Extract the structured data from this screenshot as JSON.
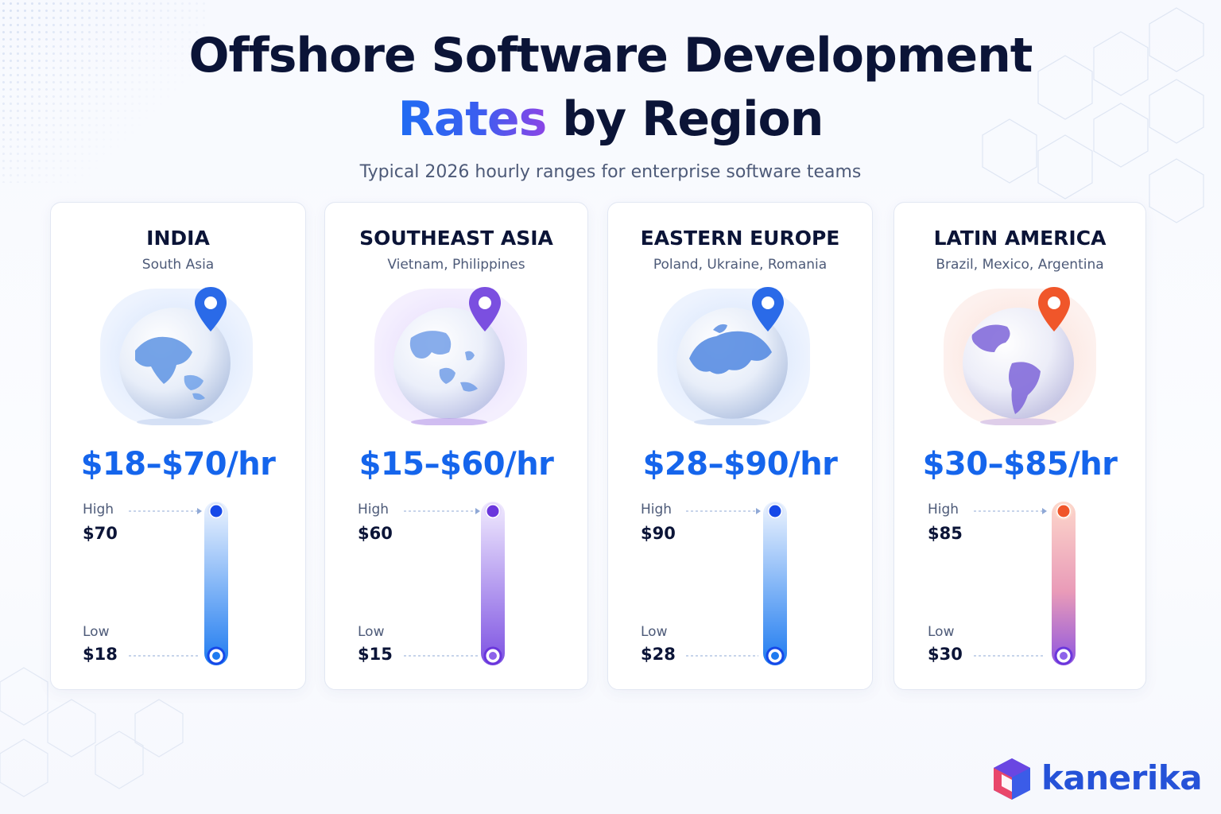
{
  "header": {
    "title_line1": "Offshore Software Development",
    "title_accent": "Rates",
    "title_rest": "by Region",
    "subtitle": "Typical 2026 hourly ranges for enterprise software teams"
  },
  "labels": {
    "high": "High",
    "low": "Low"
  },
  "chart_data": {
    "type": "range",
    "unit": "USD per hour",
    "categories": [
      "INDIA",
      "SOUTHEAST ASIA",
      "EASTERN EUROPE",
      "LATIN AMERICA"
    ],
    "regions": [
      {
        "name": "INDIA",
        "countries": "South Asia",
        "range_label": "$18–$70/hr",
        "low": 18,
        "high": 70,
        "low_label": "$18",
        "high_label": "$70",
        "accent": "#1565ec",
        "pin_color": "#2a6ae8",
        "globe_icon": "globe-asia-icon"
      },
      {
        "name": "SOUTHEAST ASIA",
        "countries": "Vietnam, Philippines",
        "range_label": "$15–$60/hr",
        "low": 15,
        "high": 60,
        "low_label": "$15",
        "high_label": "$60",
        "accent": "#7b4fe0",
        "pin_color": "#7b4fe0",
        "globe_icon": "globe-southeast-asia-icon"
      },
      {
        "name": "EASTERN EUROPE",
        "countries": "Poland, Ukraine, Romania",
        "range_label": "$28–$90/hr",
        "low": 28,
        "high": 90,
        "low_label": "$28",
        "high_label": "$90",
        "accent": "#1565ec",
        "pin_color": "#2a6ae8",
        "globe_icon": "globe-europe-icon"
      },
      {
        "name": "LATIN AMERICA",
        "countries": "Brazil, Mexico, Argentina",
        "range_label": "$30–$85/hr",
        "low": 30,
        "high": 85,
        "low_label": "$30",
        "high_label": "$85",
        "accent": "#f0562a",
        "pin_color": "#f0562a",
        "globe_icon": "globe-americas-icon"
      }
    ]
  },
  "brand": {
    "name": "kanerika",
    "icon": "kanerika-cube-logo"
  }
}
